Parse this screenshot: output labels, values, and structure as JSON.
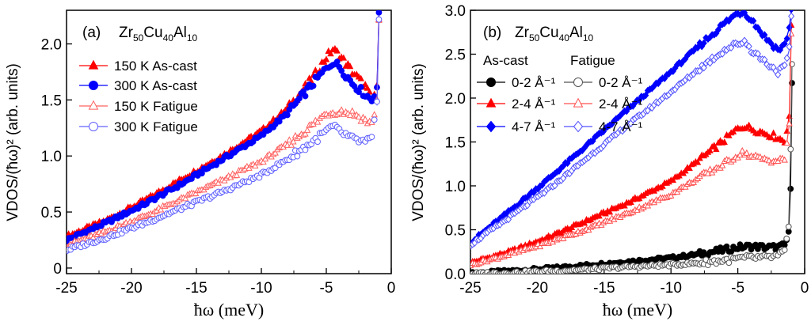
{
  "chart_data": [
    {
      "type": "scatter",
      "panel": "(a)",
      "composition": {
        "base": "Zr",
        "s1": "50",
        "mid": "Cu",
        "s2": "40",
        "end": "Al",
        "s3": "10"
      },
      "xlabel": "ħω (meV)",
      "ylabel": "VDOS/(ħω)² (arb. units)",
      "xlim": [
        -25,
        0
      ],
      "ylim": [
        -0.05,
        2.3
      ],
      "xticks": [
        "-25",
        "-20",
        "-15",
        "-10",
        "-5",
        "0"
      ],
      "xtick_values": [
        -25,
        -20,
        -15,
        -10,
        -5,
        0
      ],
      "yticks": [
        "0",
        "0.5",
        "1.0",
        "1.5",
        "2.0"
      ],
      "ytick_values": [
        0,
        0.5,
        1.0,
        1.5,
        2.0
      ],
      "legend_position": "top-left",
      "series": [
        {
          "name": "150 K As-cast",
          "color": "#ff0000",
          "marker": "triangle",
          "filled": true,
          "x": [
            -25,
            -22,
            -19,
            -16,
            -13,
            -10,
            -8,
            -6,
            -5,
            -4.5,
            -4,
            -3,
            -2,
            -1.5,
            -1.1,
            -0.95
          ],
          "y": [
            0.28,
            0.42,
            0.6,
            0.8,
            1.0,
            1.22,
            1.42,
            1.7,
            1.88,
            1.95,
            1.9,
            1.75,
            1.62,
            1.5,
            1.6,
            2.25
          ]
        },
        {
          "name": "300 K As-cast",
          "color": "#0000ff",
          "marker": "circle",
          "filled": true,
          "x": [
            -25,
            -22,
            -19,
            -16,
            -13,
            -10,
            -8,
            -6,
            -5,
            -4.5,
            -4,
            -3,
            -2,
            -1.5,
            -1.1,
            -0.95
          ],
          "y": [
            0.25,
            0.4,
            0.57,
            0.76,
            0.97,
            1.18,
            1.38,
            1.65,
            1.78,
            1.84,
            1.8,
            1.65,
            1.55,
            1.5,
            1.62,
            2.25
          ]
        },
        {
          "name": "150 K Fatigue",
          "color": "#ff6060",
          "marker": "triangle",
          "filled": false,
          "x": [
            -25,
            -22,
            -19,
            -16,
            -13,
            -10,
            -8,
            -6,
            -5,
            -4,
            -3,
            -2,
            -1.5,
            -1.1,
            -0.95
          ],
          "y": [
            0.2,
            0.32,
            0.46,
            0.62,
            0.78,
            0.95,
            1.1,
            1.28,
            1.38,
            1.4,
            1.38,
            1.32,
            1.28,
            1.5,
            2.2
          ]
        },
        {
          "name": "300 K Fatigue",
          "color": "#6060ff",
          "marker": "circle",
          "filled": false,
          "x": [
            -25,
            -22,
            -19,
            -16,
            -13,
            -10,
            -8,
            -6,
            -5,
            -4.5,
            -4,
            -3,
            -2,
            -1.5,
            -1.1,
            -0.95
          ],
          "y": [
            0.16,
            0.27,
            0.4,
            0.54,
            0.68,
            0.83,
            0.97,
            1.13,
            1.22,
            1.26,
            1.22,
            1.15,
            1.12,
            1.15,
            1.45,
            2.2
          ]
        }
      ]
    },
    {
      "type": "scatter",
      "panel": "(b)",
      "composition": {
        "base": "Zr",
        "s1": "50",
        "mid": "Cu",
        "s2": "40",
        "end": "Al",
        "s3": "10"
      },
      "xlabel": "ħω (meV)",
      "ylabel": "VDOS/(ħω)² (arb. units)",
      "xlim": [
        -25,
        0
      ],
      "ylim": [
        0,
        3.0
      ],
      "xticks": [
        "-25",
        "-20",
        "-15",
        "-10",
        "-5",
        "0"
      ],
      "xtick_values": [
        -25,
        -20,
        -15,
        -10,
        -5,
        0
      ],
      "yticks": [
        "0.0",
        "0.5",
        "1.0",
        "1.5",
        "2.0",
        "2.5",
        "3.0"
      ],
      "ytick_values": [
        0,
        0.5,
        1.0,
        1.5,
        2.0,
        2.5,
        3.0
      ],
      "legend_position": "top-left",
      "legend_headers": [
        "As-cast",
        "Fatigue"
      ],
      "series": [
        {
          "name": "0-2 Å⁻¹",
          "group": "As-cast",
          "color": "#000000",
          "marker": "circle",
          "filled": true,
          "x": [
            -25,
            -22,
            -19,
            -16,
            -13,
            -10,
            -8,
            -6,
            -5,
            -4,
            -3,
            -2,
            -1.5,
            -1.2,
            -1.05,
            -0.95
          ],
          "y": [
            0.0,
            0.03,
            0.06,
            0.1,
            0.14,
            0.18,
            0.22,
            0.27,
            0.3,
            0.31,
            0.3,
            0.3,
            0.32,
            0.45,
            1.0,
            2.2
          ]
        },
        {
          "name": "2-4 Å⁻¹",
          "group": "As-cast",
          "color": "#ff0000",
          "marker": "triangle",
          "filled": true,
          "x": [
            -25,
            -22,
            -19,
            -16,
            -13,
            -10,
            -8,
            -6,
            -5,
            -4.5,
            -4,
            -3,
            -2,
            -1.5,
            -1.15,
            -1.0
          ],
          "y": [
            0.12,
            0.25,
            0.42,
            0.62,
            0.82,
            1.05,
            1.28,
            1.52,
            1.65,
            1.68,
            1.65,
            1.6,
            1.55,
            1.5,
            1.8,
            2.8
          ]
        },
        {
          "name": "4-7 Å⁻¹",
          "group": "As-cast",
          "color": "#0000ff",
          "marker": "diamond",
          "filled": true,
          "x": [
            -25,
            -22,
            -19,
            -16,
            -13,
            -10,
            -8,
            -6,
            -5,
            -4.5,
            -4,
            -3,
            -2,
            -1.5,
            -1.15,
            -1.0
          ],
          "y": [
            0.35,
            0.72,
            1.1,
            1.5,
            1.9,
            2.3,
            2.58,
            2.85,
            2.97,
            2.98,
            2.9,
            2.7,
            2.55,
            2.6,
            2.8,
            3.0
          ]
        },
        {
          "name": "0-2 Å⁻¹",
          "group": "Fatigue",
          "color": "#555555",
          "marker": "circle",
          "filled": false,
          "x": [
            -25,
            -22,
            -19,
            -16,
            -13,
            -10,
            -8,
            -6,
            -5,
            -4,
            -3,
            -2,
            -1.5,
            -1.2,
            -1.05,
            -0.95
          ],
          "y": [
            0.0,
            0.01,
            0.03,
            0.05,
            0.08,
            0.1,
            0.12,
            0.15,
            0.17,
            0.18,
            0.18,
            0.2,
            0.25,
            0.5,
            1.4,
            2.4
          ]
        },
        {
          "name": "2-4 Å⁻¹",
          "group": "Fatigue",
          "color": "#ff5050",
          "marker": "triangle",
          "filled": false,
          "x": [
            -25,
            -22,
            -19,
            -16,
            -13,
            -10,
            -8,
            -6,
            -5,
            -4.5,
            -4,
            -3,
            -2,
            -1.5,
            -1.15,
            -1.0
          ],
          "y": [
            0.1,
            0.22,
            0.36,
            0.52,
            0.7,
            0.9,
            1.08,
            1.25,
            1.35,
            1.38,
            1.33,
            1.3,
            1.28,
            1.3,
            1.7,
            2.7
          ]
        },
        {
          "name": "4-7 Å⁻¹",
          "group": "Fatigue",
          "color": "#5050ff",
          "marker": "diamond",
          "filled": false,
          "x": [
            -25,
            -22,
            -19,
            -16,
            -13,
            -10,
            -8,
            -6,
            -5,
            -4.5,
            -4,
            -3,
            -2,
            -1.5,
            -1.15,
            -1.0
          ],
          "y": [
            0.33,
            0.65,
            0.98,
            1.35,
            1.72,
            2.07,
            2.32,
            2.55,
            2.62,
            2.65,
            2.55,
            2.42,
            2.3,
            2.35,
            2.55,
            2.9
          ]
        }
      ]
    }
  ]
}
